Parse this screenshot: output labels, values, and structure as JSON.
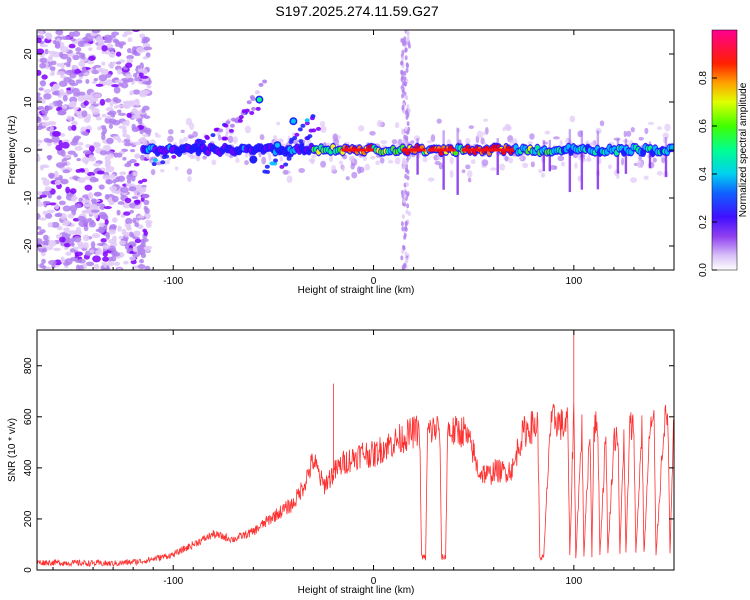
{
  "title": "S197.2025.274.11.59.G27",
  "chart_data": [
    {
      "type": "heatmap",
      "name": "spectrogram",
      "xlabel": "Height of straight line (km)",
      "ylabel": "Frequency (Hz)",
      "xlim": [
        -168,
        150
      ],
      "ylim": [
        -25,
        25
      ],
      "xticks": [
        -100,
        0,
        100
      ],
      "xtick_labels": [
        "-100",
        "0",
        "100"
      ],
      "yticks": [
        -20,
        -10,
        0,
        10,
        20
      ],
      "ytick_labels": [
        "-20",
        "-10",
        "0",
        "10",
        "20"
      ],
      "colorbar": {
        "label": "Normalized spectral amplitude",
        "range": [
          0,
          1
        ],
        "ticks": [
          0.0,
          0.2,
          0.4,
          0.6,
          0.8
        ],
        "tick_labels": [
          "0.0",
          "0.2",
          "0.4",
          "0.6",
          "0.8"
        ],
        "colors": [
          "#ffffff",
          "#e0c8f8",
          "#b080f0",
          "#8000ff",
          "#2020ff",
          "#00c0ff",
          "#00ff80",
          "#40ff00",
          "#ffff00",
          "#ff8000",
          "#ff0000",
          "#ff0090"
        ]
      },
      "ridge": {
        "x_start": -115,
        "x_end": 150,
        "frequency": 0,
        "description_values": {
          "peak_segments_x": [
            [
              -15,
              0
            ],
            [
              15,
              25
            ],
            [
              28,
              40
            ],
            [
              45,
              70
            ]
          ]
        }
      }
    },
    {
      "type": "line",
      "name": "snr",
      "xlabel": "Height of straight line (km)",
      "ylabel": "SNR (10 * v/v)",
      "xlim": [
        -168,
        150
      ],
      "ylim": [
        0,
        940
      ],
      "xticks": [
        -100,
        0,
        100
      ],
      "xtick_labels": [
        "-100",
        "0",
        "100"
      ],
      "yticks": [
        0,
        200,
        400,
        600,
        800
      ],
      "ytick_labels": [
        "0",
        "200",
        "400",
        "600",
        "800"
      ],
      "color": "#ff3030",
      "series": [
        {
          "name": "SNR",
          "x": [
            -168,
            -130,
            -115,
            -100,
            -90,
            -80,
            -70,
            -60,
            -50,
            -40,
            -35,
            -30,
            -25,
            -20,
            -15,
            -10,
            -5,
            0,
            5,
            10,
            15,
            20,
            23,
            24,
            26,
            27,
            30,
            33,
            34,
            36,
            37,
            40,
            45,
            50,
            51,
            53,
            55,
            58,
            60,
            65,
            70,
            72,
            75,
            78,
            80,
            82,
            83,
            85,
            88,
            90,
            91,
            95,
            97,
            98,
            100,
            101,
            104,
            105,
            108,
            109,
            110,
            112,
            113,
            116,
            117,
            120,
            122,
            123,
            125,
            126,
            128,
            130,
            131,
            134,
            135,
            138,
            140,
            141,
            145,
            147,
            148,
            150
          ],
          "y": [
            30,
            25,
            35,
            60,
            100,
            140,
            120,
            150,
            210,
            260,
            330,
            430,
            330,
            380,
            420,
            440,
            460,
            450,
            480,
            500,
            520,
            540,
            550,
            50,
            50,
            540,
            550,
            560,
            50,
            50,
            550,
            540,
            545,
            460,
            420,
            380,
            380,
            370,
            390,
            385,
            400,
            480,
            540,
            560,
            560,
            570,
            50,
            50,
            540,
            590,
            590,
            560,
            580,
            50,
            640,
            50,
            560,
            60,
            560,
            60,
            560,
            560,
            60,
            540,
            60,
            510,
            540,
            60,
            540,
            60,
            560,
            560,
            60,
            560,
            60,
            560,
            580,
            60,
            580,
            590,
            60,
            600
          ]
        }
      ],
      "annotations": [
        {
          "x": -20,
          "y": 730,
          "label": "spike"
        },
        {
          "x": 100,
          "y": 940,
          "label": "max spike"
        }
      ]
    }
  ]
}
